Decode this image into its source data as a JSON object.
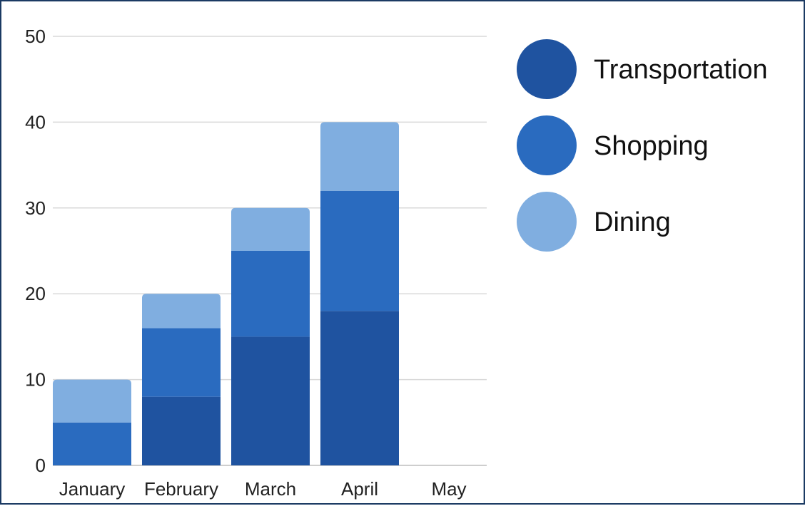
{
  "chart_data": {
    "type": "bar",
    "stacked": true,
    "categories": [
      "January",
      "February",
      "March",
      "April",
      "May"
    ],
    "series": [
      {
        "name": "Transportation",
        "values": [
          0,
          8,
          15,
          18,
          0
        ],
        "color": "#1f53a0"
      },
      {
        "name": "Shopping",
        "values": [
          5,
          8,
          10,
          14,
          0
        ],
        "color": "#2a6bbf"
      },
      {
        "name": "Dining",
        "values": [
          5,
          4,
          5,
          8,
          0
        ],
        "color": "#80aee0"
      }
    ],
    "y_ticks": [
      "0",
      "10",
      "20",
      "30",
      "40",
      "50"
    ],
    "ylim": [
      0,
      50
    ],
    "grid": true,
    "legend_position": "right"
  }
}
